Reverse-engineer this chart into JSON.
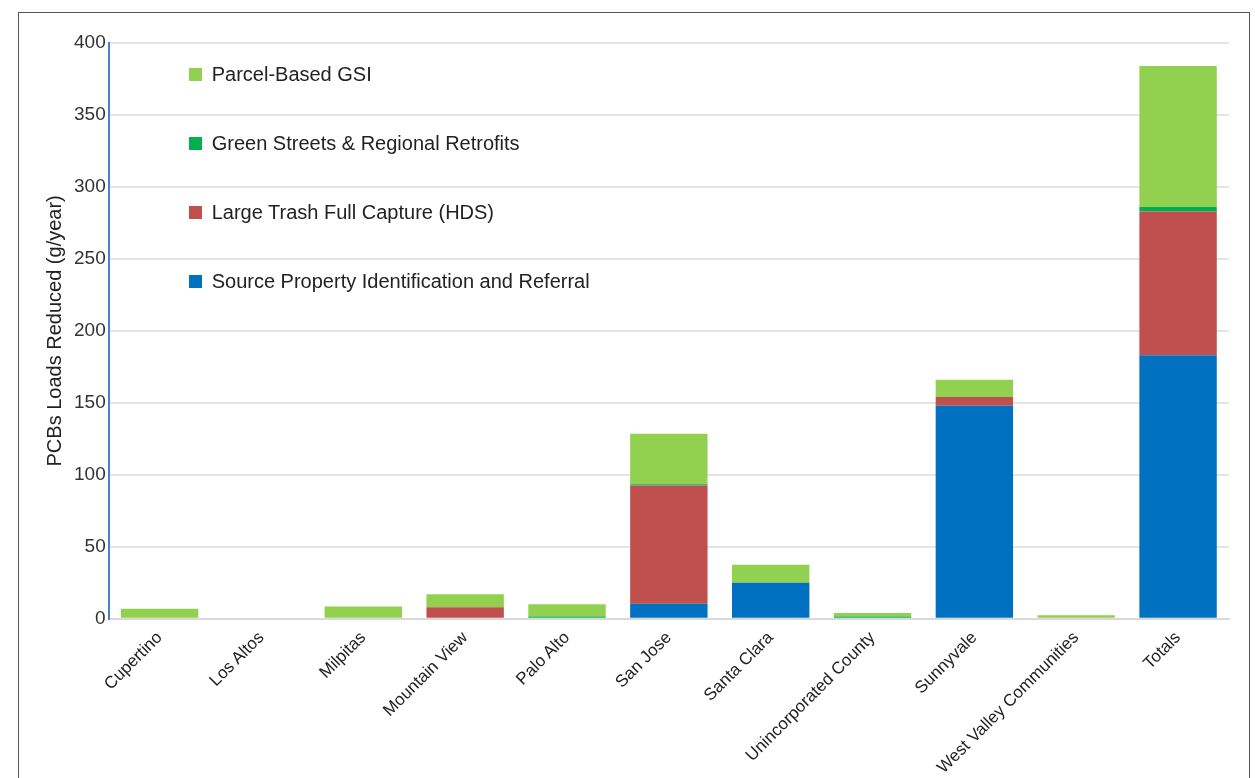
{
  "chart_data": {
    "type": "bar",
    "stacked": true,
    "ylabel": "PCBs Loads Reduced (g/year)",
    "categories": [
      "Cupertino",
      "Los Altos",
      "Milpitas",
      "Mountain View",
      "Palo Alto",
      "San Jose",
      "Santa Clara",
      "Unincorporated County",
      "Sunnyvale",
      "West Valley Communities",
      "Totals"
    ],
    "series": [
      {
        "name": "Source Property Identification and Referral",
        "color": "#0070c0",
        "values": [
          0,
          0,
          0,
          0,
          0,
          10.5,
          25,
          0,
          148,
          0,
          183
        ]
      },
      {
        "name": "Large Trash Full Capture (HDS)",
        "color": "#c0504d",
        "values": [
          0,
          0,
          0,
          8,
          0,
          82,
          0,
          0,
          6,
          0,
          100
        ]
      },
      {
        "name": "Green Streets & Regional Retrofits",
        "color": "#00b050",
        "values": [
          0,
          0,
          0,
          0,
          1.5,
          1,
          0,
          1.5,
          0,
          0,
          3
        ]
      },
      {
        "name": "Parcel-Based GSI",
        "color": "#92d050",
        "values": [
          7,
          0,
          8.5,
          9,
          8.5,
          35,
          12.5,
          2.5,
          12,
          2.5,
          98
        ]
      }
    ],
    "ylim": [
      0,
      400
    ],
    "yticks": [
      0,
      50,
      100,
      150,
      200,
      250,
      300,
      350,
      400
    ],
    "grid": "y",
    "legend": "top left"
  }
}
